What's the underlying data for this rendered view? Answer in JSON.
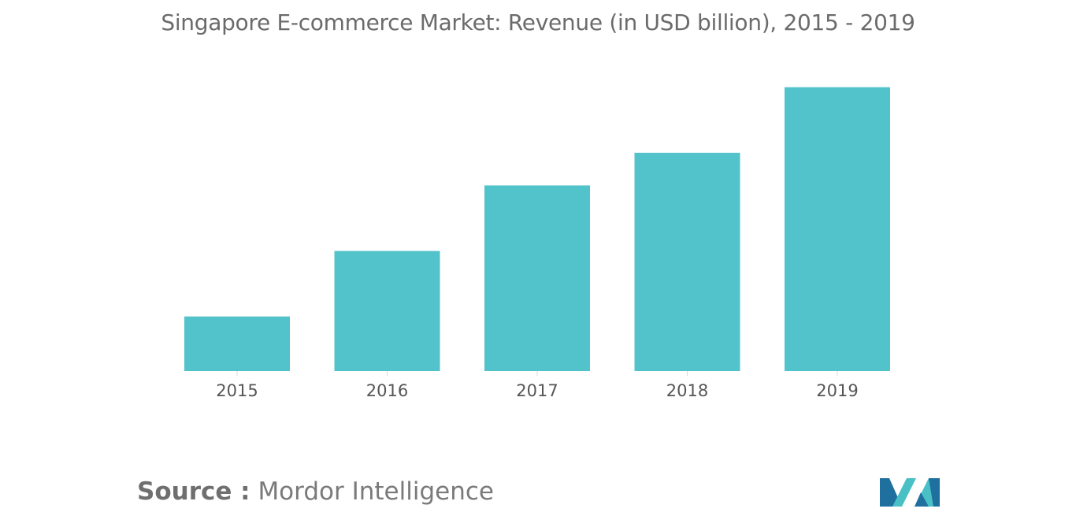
{
  "chart_data": {
    "type": "bar",
    "title": "Singapore E-commerce Market: Revenue (in USD billion), 2015 - 2019",
    "categories": [
      "2015",
      "2016",
      "2017",
      "2018",
      "2019"
    ],
    "values": [
      1.0,
      2.2,
      3.4,
      4.0,
      5.2
    ],
    "xlabel": "",
    "ylabel": "",
    "ylim": [
      0,
      5.6
    ],
    "grid": false,
    "legend": "none",
    "bar_color": "#52c3ca"
  },
  "source": {
    "label": "Source :",
    "name": "Mordor Intelligence"
  },
  "colors": {
    "title": "#6b6b6b",
    "bar": "#52c3ca",
    "logo_dark": "#1f6f9f",
    "logo_light": "#49c0c6"
  }
}
